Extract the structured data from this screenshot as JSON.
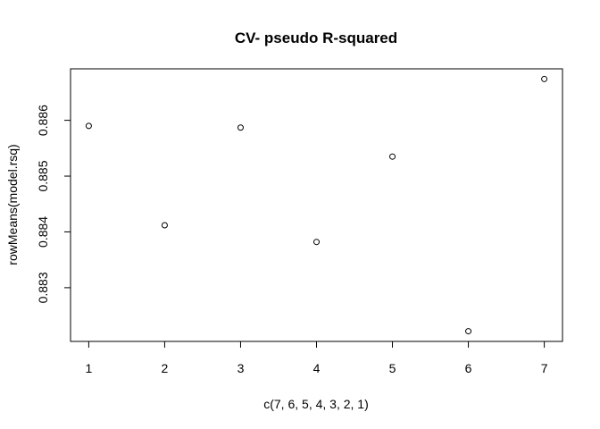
{
  "chart_data": {
    "type": "scatter",
    "title": "CV- pseudo R-squared",
    "xlabel": "c(7, 6, 5, 4, 3, 2, 1)",
    "ylabel": "rowMeans(model.rsq)",
    "x": [
      1,
      2,
      3,
      4,
      5,
      6,
      7
    ],
    "y": [
      0.8859,
      0.88412,
      0.88587,
      0.88382,
      0.88535,
      0.88222,
      0.88674
    ],
    "xlim": [
      0.76,
      7.24
    ],
    "ylim": [
      0.882037,
      0.886923
    ],
    "xticks": [
      "1",
      "2",
      "3",
      "4",
      "5",
      "6",
      "7"
    ],
    "yticks": [
      "0.883",
      "0.884",
      "0.885",
      "0.886"
    ],
    "marker": "open-circle",
    "grid": false,
    "legend": "none",
    "colors": {
      "marker": "#000000",
      "axis": "#000000",
      "background": "#ffffff"
    }
  }
}
